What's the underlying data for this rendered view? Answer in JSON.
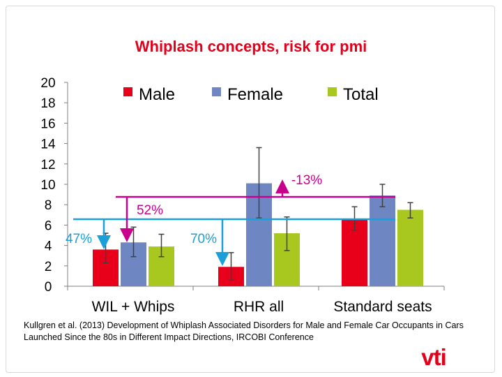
{
  "title": "Whiplash concepts, risk for pmi",
  "citation": "Kullgren et al. (2013) Development of Whiplash Associated Disorders for Male and Female Car Occupants in Cars Launched Since the 80s in Different Impact Directions, IRCOBI Conference",
  "logo_text": "vti",
  "colors": {
    "title": "#e2001a",
    "male": "#e8001a",
    "female": "#6e86c2",
    "total": "#a8c820",
    "magenta": "#c8008c",
    "blue": "#1a9fd8"
  },
  "chart_data": {
    "type": "bar",
    "categories": [
      "WIL + Whips",
      "RHR all",
      "Standard seats"
    ],
    "series": [
      {
        "name": "Male",
        "values": [
          3.6,
          1.9,
          6.6
        ],
        "err_low": [
          2.3,
          0.6,
          5.5
        ],
        "err_high": [
          5.2,
          3.3,
          7.8
        ]
      },
      {
        "name": "Female",
        "values": [
          4.3,
          10.1,
          8.9
        ],
        "err_low": [
          2.9,
          6.7,
          7.8
        ],
        "err_high": [
          5.8,
          13.6,
          10.0
        ]
      },
      {
        "name": "Total",
        "values": [
          3.9,
          5.2,
          7.5
        ],
        "err_low": [
          2.9,
          3.5,
          6.7
        ],
        "err_high": [
          5.1,
          6.8,
          8.2
        ]
      }
    ],
    "ylim": [
      0,
      20
    ],
    "yticks": [
      "0",
      "2",
      "4",
      "6",
      "8",
      "10",
      "12",
      "14",
      "16",
      "18",
      "20"
    ],
    "grid": false,
    "legend_position": "top",
    "annotations": [
      {
        "text": "47%",
        "color": "#1a9fd8"
      },
      {
        "text": "52%",
        "color": "#c8008c"
      },
      {
        "text": "70%",
        "color": "#1a9fd8"
      },
      {
        "text": "-13%",
        "color": "#c8008c"
      }
    ]
  }
}
